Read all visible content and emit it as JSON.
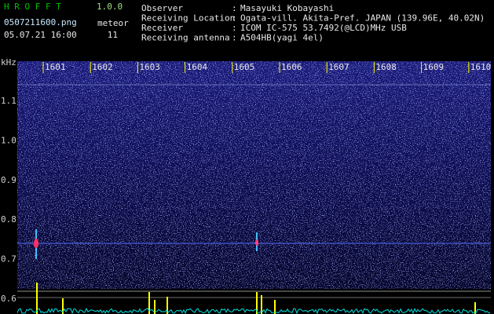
{
  "header": {
    "app_name": "H R O F F T",
    "version": "1.0.0",
    "filename": "0507211600.png",
    "meteor_label": "meteor",
    "meteor_count": "11",
    "datetime": "05.07.21 16:00"
  },
  "info": [
    {
      "label": "Observer",
      "sep": ":",
      "value": "Masayuki Kobayashi"
    },
    {
      "label": "Receiving Location",
      "sep": ":",
      "value": "Ogata-vill. Akita-Pref. JAPAN (139.96E, 40.02N)"
    },
    {
      "label": "Receiver",
      "sep": ":",
      "value": "ICOM IC-575 53.7492(@LCD)MHz USB"
    },
    {
      "label": "Receiving antenna",
      "sep": ":",
      "value": "A504HB(yagi 4el)"
    }
  ],
  "axis": {
    "unit": "kHz",
    "time_labels": [
      "1601",
      "1602",
      "1603",
      "1604",
      "1605",
      "1606",
      "1607",
      "1608",
      "1609",
      "1610"
    ],
    "freq_labels": [
      "1.1",
      "1.0",
      "0.9",
      "0.8",
      "0.7",
      "0.6"
    ]
  }
}
